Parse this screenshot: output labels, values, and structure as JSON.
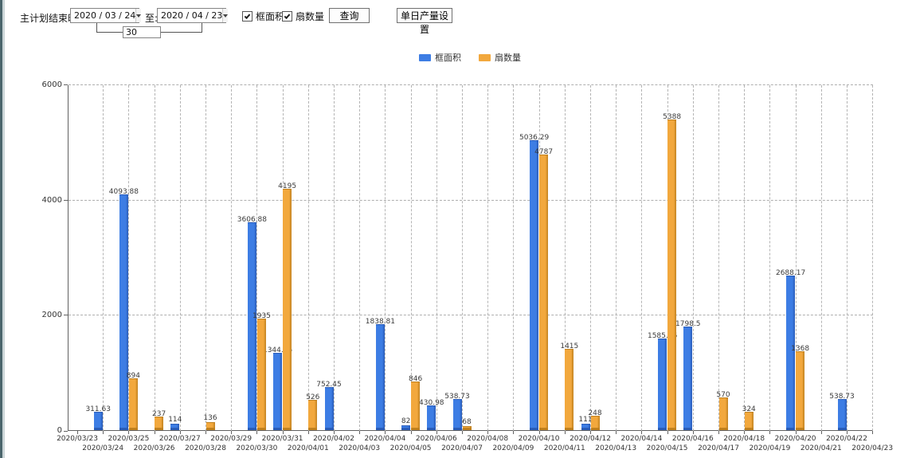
{
  "toolbar": {
    "label_end_time": "主计划结束时间:",
    "date_from": "2020 / 03 / 24",
    "label_to": "至:",
    "date_to": "2020 / 04 / 23",
    "interval_days": "30",
    "checkbox_frame_area": "框面积",
    "checkbox_fan_count": "扇数量",
    "query_button": "查询",
    "daily_output_button": "单日产量设置"
  },
  "legend": {
    "series1": "框面积",
    "series2": "扇数量"
  },
  "colors": {
    "frame_area": "#3d7de4",
    "frame_area_dark": "#2a5cb8",
    "fan_count": "#f2a83d",
    "fan_count_dark": "#c0811f",
    "grid": "#b4b4b4",
    "axis": "#616161",
    "value_label": "#3a3a3a"
  },
  "chart_data": {
    "type": "bar",
    "title": "",
    "xlabel": "",
    "ylabel": "",
    "ylim": [
      0,
      6000
    ],
    "yticks": [
      0,
      2000,
      4000,
      6000
    ],
    "grid": true,
    "legend_position": "top",
    "categories": [
      "2020/03/23",
      "2020/03/24",
      "2020/03/25",
      "2020/03/26",
      "2020/03/27",
      "2020/03/28",
      "2020/03/29",
      "2020/03/30",
      "2020/03/31",
      "2020/04/01",
      "2020/04/02",
      "2020/04/03",
      "2020/04/04",
      "2020/04/05",
      "2020/04/06",
      "2020/04/07",
      "2020/04/08",
      "2020/04/09",
      "2020/04/10",
      "2020/04/11",
      "2020/04/12",
      "2020/04/13",
      "2020/04/14",
      "2020/04/15",
      "2020/04/16",
      "2020/04/17",
      "2020/04/18",
      "2020/04/19",
      "2020/04/20",
      "2020/04/21",
      "2020/04/22",
      "2020/04/23"
    ],
    "series": [
      {
        "name": "框面积",
        "color": "#3d7de4",
        "values": [
          null,
          311.63,
          4093.88,
          null,
          114,
          null,
          null,
          3606.88,
          1344.95,
          null,
          752.45,
          null,
          1838.81,
          82,
          430.98,
          538.73,
          null,
          null,
          5036.29,
          null,
          111,
          null,
          null,
          1585.96,
          1798.5,
          null,
          null,
          null,
          2688.17,
          null,
          538.73,
          null
        ]
      },
      {
        "name": "扇数量",
        "color": "#f2a83d",
        "values": [
          null,
          null,
          894,
          237,
          null,
          136,
          null,
          1935,
          4195,
          526,
          null,
          null,
          null,
          846,
          null,
          68,
          null,
          null,
          4787,
          1415,
          248,
          null,
          null,
          5388,
          null,
          570,
          324,
          null,
          1368,
          null,
          null,
          null
        ]
      }
    ]
  }
}
